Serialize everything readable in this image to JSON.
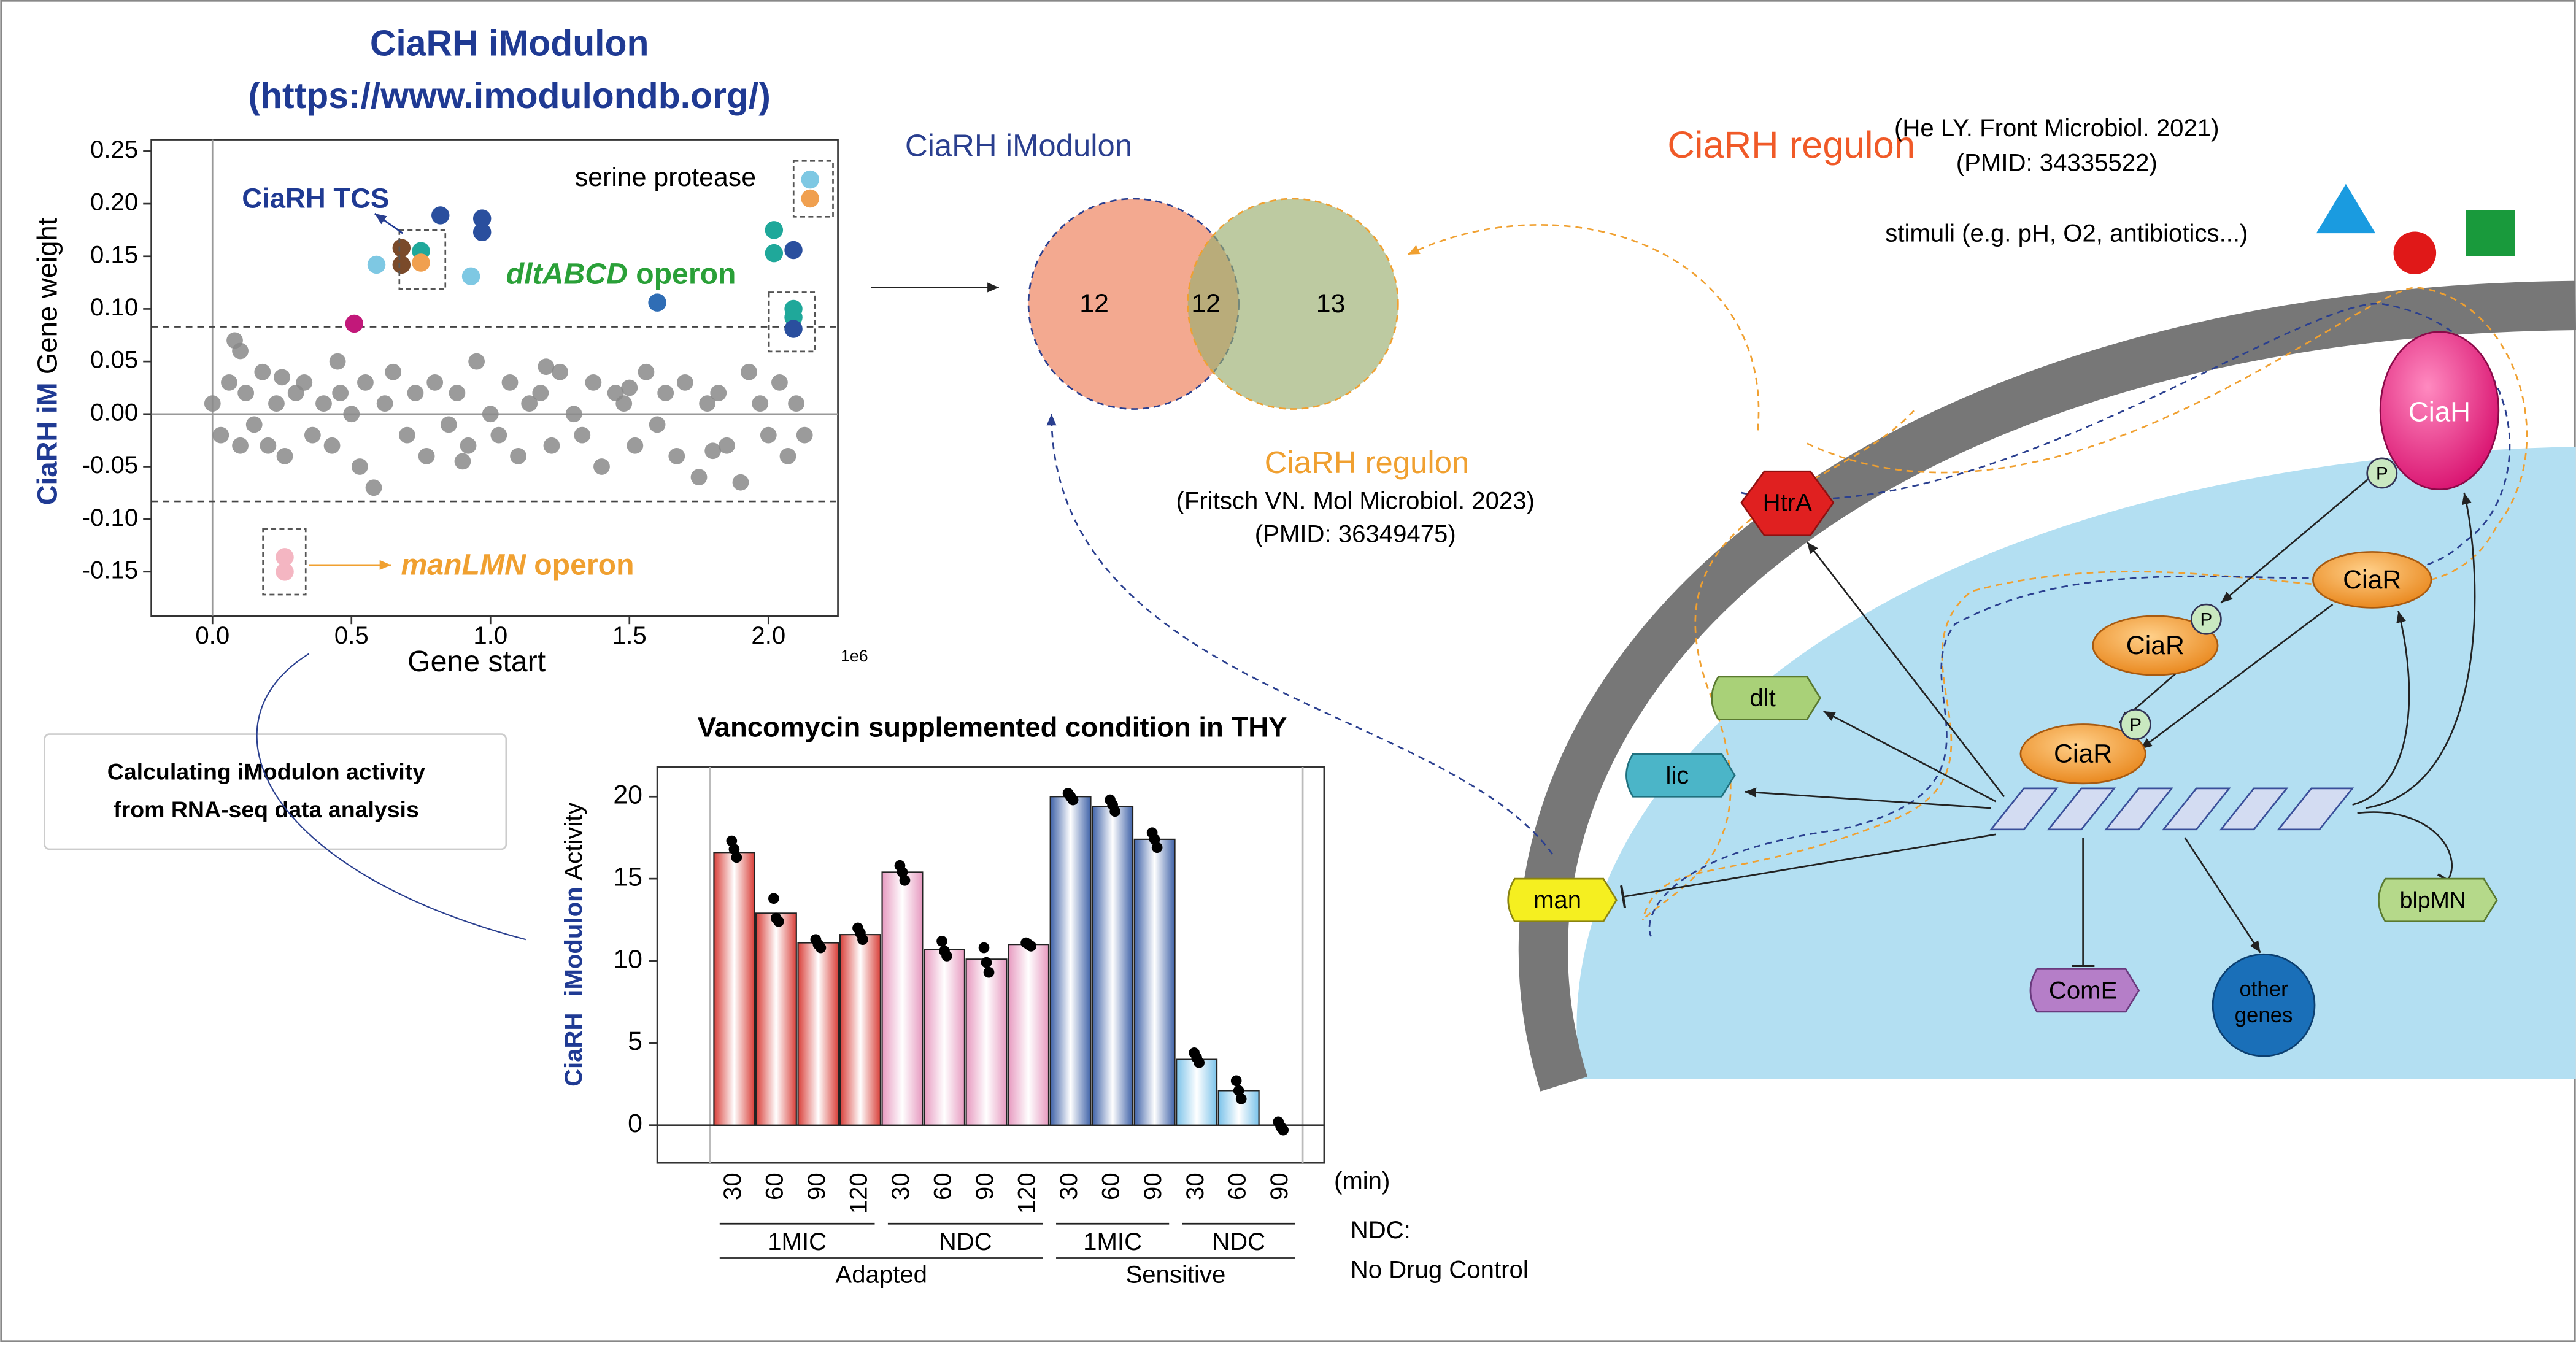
{
  "chart_data": [
    {
      "type": "scatter",
      "title": [
        "CiaRH iModulon",
        "(https://www.imodulondb.org/)"
      ],
      "x_label": "Gene start",
      "x_offset_label": "1e6",
      "y_label": [
        "CiaRH iM",
        "Gene weight"
      ],
      "xlim": [
        -0.22,
        2.25
      ],
      "xticks": [
        {
          "value": 0,
          "label": "0.0"
        },
        0.5,
        {
          "value": 1,
          "label": "1.0"
        },
        1.5,
        {
          "value": 2,
          "label": "2.0"
        }
      ],
      "ylim": [
        -0.192,
        0.261
      ],
      "yticks": [
        -0.15,
        {
          "value": -0.1,
          "label": "-0.10"
        },
        -0.05,
        {
          "value": 0,
          "label": "0.00"
        },
        0.05,
        {
          "value": 0.1,
          "label": "0.10"
        },
        0.15,
        {
          "value": 0.2,
          "label": "0.20"
        },
        0.25
      ],
      "thresholds": [
        0.083,
        -0.083
      ],
      "annotations": {
        "tcs": "CiaRH TCS",
        "serine": "serine protease",
        "dlt": [
          "dltABCD",
          " operon"
        ],
        "man": [
          "manLMN",
          " operon"
        ]
      },
      "series": [
        {
          "color": "#8a8a8a",
          "x": [
            0.0,
            0.03,
            0.06,
            0.08,
            0.1,
            0.1,
            0.12,
            0.15,
            0.18,
            0.2,
            0.23,
            0.26,
            0.3,
            0.33,
            0.36,
            0.4,
            0.43,
            0.46,
            0.5,
            0.53,
            0.55,
            0.58,
            0.62,
            0.65,
            0.7,
            0.73,
            0.77,
            0.8,
            0.85,
            0.88,
            0.92,
            0.95,
            1.0,
            1.03,
            1.07,
            1.1,
            1.14,
            1.18,
            1.22,
            1.25,
            1.3,
            1.33,
            1.37,
            1.4,
            1.45,
            1.48,
            1.52,
            1.56,
            1.6,
            1.63,
            1.67,
            1.7,
            1.75,
            1.78,
            1.82,
            1.85,
            1.9,
            1.93,
            1.97,
            2.0,
            2.04,
            2.07,
            2.1,
            2.13,
            0.25,
            0.9,
            1.2,
            1.5,
            1.8,
            0.45
          ],
          "values": [
            0.01,
            -0.02,
            0.03,
            0.07,
            0.06,
            -0.03,
            0.02,
            -0.01,
            0.04,
            -0.03,
            0.01,
            -0.04,
            0.02,
            0.03,
            -0.02,
            0.01,
            -0.03,
            0.02,
            0.0,
            -0.05,
            0.03,
            -0.07,
            0.01,
            0.04,
            -0.02,
            0.02,
            -0.04,
            0.03,
            -0.01,
            0.02,
            -0.03,
            0.05,
            0.0,
            -0.02,
            0.03,
            -0.04,
            0.01,
            0.02,
            -0.03,
            0.04,
            0.0,
            -0.02,
            0.03,
            -0.05,
            0.02,
            0.01,
            -0.03,
            0.04,
            -0.01,
            0.02,
            -0.04,
            0.03,
            -0.06,
            0.01,
            0.02,
            -0.03,
            -0.065,
            0.04,
            0.01,
            -0.02,
            0.03,
            -0.04,
            0.01,
            -0.02,
            0.035,
            -0.045,
            0.045,
            0.025,
            -0.035,
            0.05
          ]
        },
        {
          "color": "#c2187a",
          "x": [
            0.51
          ],
          "values": [
            0.086
          ]
        },
        {
          "color": "#7ec8e3",
          "x": [
            0.59,
            0.93,
            2.15
          ],
          "values": [
            0.142,
            0.131,
            0.223
          ]
        },
        {
          "color": "#7a4a2a",
          "x": [
            0.68,
            0.68
          ],
          "values": [
            0.158,
            0.142
          ]
        },
        {
          "color": "#1fa89a",
          "x": [
            0.75,
            2.02,
            2.02,
            2.09,
            2.09
          ],
          "values": [
            0.155,
            0.175,
            0.153,
            0.1,
            0.092
          ]
        },
        {
          "color": "#f0a050",
          "x": [
            0.75,
            2.15
          ],
          "values": [
            0.144,
            0.205
          ]
        },
        {
          "color": "#2a4f9e",
          "x": [
            0.82,
            0.97,
            0.97,
            2.09,
            2.09
          ],
          "values": [
            0.189,
            0.186,
            0.173,
            0.156,
            0.081
          ]
        },
        {
          "color": "#2f6db5",
          "x": [
            1.6
          ],
          "values": [
            0.106
          ]
        },
        {
          "color": "#f4b6c2",
          "x": [
            0.26,
            0.26
          ],
          "values": [
            -0.136,
            -0.15
          ]
        }
      ]
    },
    {
      "type": "bar",
      "title": "Vancomycin supplemented condition in THY",
      "y_label": [
        "CiaRH",
        "iModulon",
        "Activity"
      ],
      "x_unit": "(min)",
      "categories": [
        "30",
        "60",
        "90",
        "120",
        "30",
        "60",
        "90",
        "120",
        "30",
        "60",
        "90",
        "30",
        "60",
        "90"
      ],
      "values": [
        16.6,
        12.9,
        11.1,
        11.6,
        15.4,
        10.7,
        10.1,
        11.0,
        20.0,
        19.4,
        17.4,
        4.0,
        2.1,
        0
      ],
      "colors": [
        "#d9403a",
        "#d9403a",
        "#d9403a",
        "#d9403a",
        "#e79ac0",
        "#e79ac0",
        "#e79ac0",
        "#e79ac0",
        "#3f62a8",
        "#3f62a8",
        "#3f62a8",
        "#7cc3ea",
        "#7cc3ea",
        "#7cc3ea"
      ],
      "replicates": [
        [
          17.3,
          16.8,
          16.3
        ],
        [
          13.8,
          12.6,
          12.4
        ],
        [
          11.3,
          11.0,
          10.8
        ],
        [
          12.0,
          11.7,
          11.3
        ],
        [
          15.8,
          15.4,
          14.9
        ],
        [
          11.2,
          10.6,
          10.3
        ],
        [
          10.8,
          9.9,
          9.3
        ],
        [
          11.1,
          11.0,
          10.9
        ],
        [
          20.2,
          20.0,
          19.8
        ],
        [
          19.8,
          19.5,
          19.1
        ],
        [
          17.8,
          17.4,
          16.9
        ],
        [
          4.4,
          4.1,
          3.8
        ],
        [
          2.7,
          2.1,
          1.6
        ],
        [
          0.2,
          -0.1,
          -0.3
        ]
      ],
      "groups": [
        "1MIC",
        "NDC",
        "1MIC",
        "NDC"
      ],
      "super_groups": [
        "Adapted",
        "Sensitive"
      ],
      "note": [
        "NDC:",
        "No Drug Control"
      ],
      "ylim": [
        -2.3,
        21.8
      ],
      "yticks": [
        0,
        5,
        10,
        15,
        20
      ]
    }
  ],
  "venn": {
    "left_label": "CiaRH iModulon",
    "right_label": "CiaRH regulon",
    "counts": [
      12,
      12,
      13
    ],
    "citation": [
      "(Fritsch VN. Mol Microbiol. 2023)",
      "(PMID: 36349475)"
    ]
  },
  "method_box": [
    "Calculating iModulon activity",
    "from RNA-seq data analysis"
  ],
  "diagram": {
    "title": "CiaRH regulon",
    "citation": [
      "(He LY. Front Microbiol. 2021)",
      "(PMID: 34335522)"
    ],
    "stimuli": "stimuli (e.g. pH, O2, antibiotics...)",
    "nodes": {
      "ciah": "CiaH",
      "ciar": [
        "CiaR",
        "CiaR",
        "CiaR"
      ],
      "p": [
        "P",
        "P",
        "P"
      ],
      "htra": "HtrA",
      "dlt": "dlt",
      "lic": "lic",
      "man": "man",
      "blpmn": "blpMN",
      "come": "ComE",
      "other": [
        "other",
        "genes"
      ]
    }
  }
}
